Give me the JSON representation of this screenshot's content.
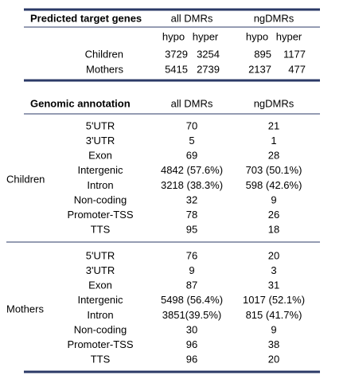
{
  "target_genes": {
    "title": "Predicted target genes",
    "columns": [
      "all DMRs",
      "ngDMRs"
    ],
    "subcolumns": [
      "hypo",
      "hyper",
      "hypo",
      "hyper"
    ],
    "rows": [
      {
        "label": "Children",
        "values": [
          3729,
          3254,
          895,
          1177
        ]
      },
      {
        "label": "Mothers",
        "values": [
          5415,
          2739,
          2137,
          477
        ]
      }
    ]
  },
  "annotation": {
    "title": "Genomic annotation",
    "columns": [
      "all DMRs",
      "ngDMRs"
    ],
    "groups": [
      {
        "label": "Children",
        "rows": [
          [
            "5'UTR",
            70,
            21
          ],
          [
            "3'UTR",
            5,
            1
          ],
          [
            "Exon",
            69,
            28
          ],
          [
            "Intergenic",
            "4842 (57.6%)",
            "703 (50.1%)"
          ],
          [
            "Intron",
            "3218 (38.3%)",
            "598 (42.6%)"
          ],
          [
            "Non-coding",
            32,
            9
          ],
          [
            "Promoter-TSS",
            78,
            26
          ],
          [
            "TTS",
            95,
            18
          ]
        ]
      },
      {
        "label": "Mothers",
        "rows": [
          [
            "5'UTR",
            76,
            20
          ],
          [
            "3'UTR",
            9,
            3
          ],
          [
            "Exon",
            87,
            31
          ],
          [
            "Intergenic",
            "5498 (56.4%)",
            "1017 (52.1%)"
          ],
          [
            "Intron",
            "3851(39.5%)",
            "815 (41.7%)"
          ],
          [
            "Non-coding",
            30,
            9
          ],
          [
            "Promoter-TSS",
            96,
            38
          ],
          [
            "TTS",
            96,
            20
          ]
        ]
      }
    ]
  }
}
